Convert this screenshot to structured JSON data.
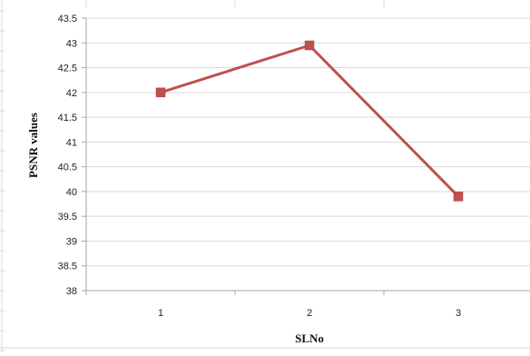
{
  "chart_data": {
    "type": "line",
    "title": "",
    "xlabel": "SLNo",
    "ylabel": "PSNR values",
    "categories": [
      "1",
      "2",
      "3"
    ],
    "series": [
      {
        "values": [
          42.0,
          42.95,
          39.9
        ]
      }
    ],
    "ylim": [
      38,
      43.5
    ],
    "ytick_step": 0.5,
    "yticks": [
      "38",
      "38.5",
      "39",
      "39.5",
      "40",
      "40.5",
      "41",
      "41.5",
      "42",
      "42.5",
      "43",
      "43.5"
    ],
    "grid": true,
    "legend": "none",
    "colors": {
      "series_line": "#c0504d",
      "marker": "#c0504d",
      "gridline": "#d9d9d9",
      "axis": "#a6a6a6",
      "outer_border": "#d9d9d9"
    }
  }
}
